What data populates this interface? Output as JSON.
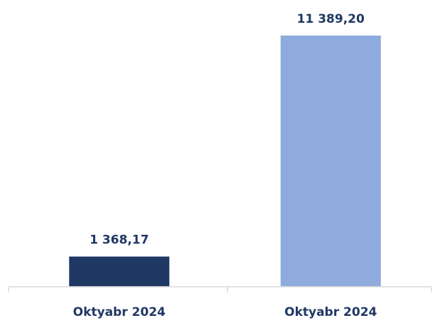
{
  "chart_data": {
    "type": "bar",
    "categories": [
      "Oktyabr 2024",
      "Oktyabr 2024"
    ],
    "values": [
      1368.17,
      11389.2
    ],
    "value_labels": [
      "1 368,17",
      "11 389,20"
    ],
    "colors": [
      "#203864",
      "#8faadc"
    ]
  }
}
